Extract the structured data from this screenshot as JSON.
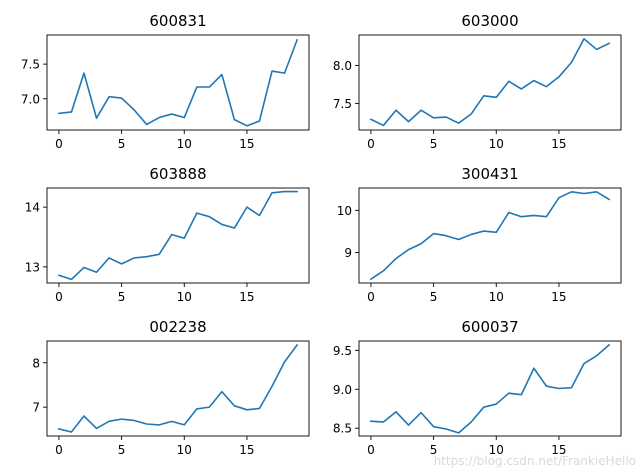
{
  "line_color": "#1f77b4",
  "watermark": "https://blog.csdn.net/FrankieHello",
  "chart_data": [
    {
      "type": "line",
      "title": "600831",
      "x": [
        0,
        1,
        2,
        3,
        4,
        5,
        6,
        7,
        8,
        9,
        10,
        11,
        12,
        13,
        14,
        15,
        16,
        17,
        18,
        19
      ],
      "series": [
        {
          "values": [
            6.79,
            6.81,
            7.37,
            6.72,
            7.03,
            7.01,
            6.84,
            6.63,
            6.73,
            6.78,
            6.73,
            7.17,
            7.17,
            7.35,
            6.7,
            6.61,
            6.68,
            7.4,
            7.37,
            7.85
          ]
        }
      ],
      "xlim": [
        -0.95,
        19.95
      ],
      "ylim": [
        6.55,
        7.92
      ],
      "xticks": [
        0,
        5,
        10,
        15
      ],
      "xtick_labels": [
        "0",
        "5",
        "10",
        "15"
      ],
      "yticks": [
        7.0,
        7.5
      ],
      "ytick_labels": [
        "7.0",
        "7.5"
      ]
    },
    {
      "type": "line",
      "title": "603000",
      "x": [
        0,
        1,
        2,
        3,
        4,
        5,
        6,
        7,
        8,
        9,
        10,
        11,
        12,
        13,
        14,
        15,
        16,
        17,
        18,
        19
      ],
      "series": [
        {
          "values": [
            7.29,
            7.21,
            7.41,
            7.26,
            7.41,
            7.31,
            7.32,
            7.24,
            7.36,
            7.6,
            7.58,
            7.79,
            7.69,
            7.8,
            7.72,
            7.85,
            8.04,
            8.35,
            8.21,
            8.29
          ]
        }
      ],
      "xlim": [
        -0.95,
        19.95
      ],
      "ylim": [
        7.15,
        8.4
      ],
      "xticks": [
        0,
        5,
        10,
        15
      ],
      "xtick_labels": [
        "0",
        "5",
        "10",
        "15"
      ],
      "yticks": [
        7.5,
        8.0
      ],
      "ytick_labels": [
        "7.5",
        "8.0"
      ]
    },
    {
      "type": "line",
      "title": "603888",
      "x": [
        0,
        1,
        2,
        3,
        4,
        5,
        6,
        7,
        8,
        9,
        10,
        11,
        12,
        13,
        14,
        15,
        16,
        17,
        18,
        19
      ],
      "series": [
        {
          "values": [
            12.86,
            12.79,
            12.99,
            12.91,
            13.15,
            13.05,
            13.15,
            13.17,
            13.21,
            13.54,
            13.48,
            13.9,
            13.84,
            13.71,
            13.65,
            14.0,
            13.86,
            14.24,
            14.26,
            14.26
          ]
        }
      ],
      "xlim": [
        -0.95,
        19.95
      ],
      "ylim": [
        12.73,
        14.32
      ],
      "xticks": [
        0,
        5,
        10,
        15
      ],
      "xtick_labels": [
        "0",
        "5",
        "10",
        "15"
      ],
      "yticks": [
        13,
        14
      ],
      "ytick_labels": [
        "13",
        "14"
      ]
    },
    {
      "type": "line",
      "title": "300431",
      "x": [
        0,
        1,
        2,
        3,
        4,
        5,
        6,
        7,
        8,
        9,
        10,
        11,
        12,
        13,
        14,
        15,
        16,
        17,
        18,
        19
      ],
      "series": [
        {
          "values": [
            8.37,
            8.57,
            8.86,
            9.07,
            9.21,
            9.45,
            9.4,
            9.31,
            9.43,
            9.51,
            9.48,
            9.95,
            9.85,
            9.88,
            9.85,
            10.3,
            10.44,
            10.4,
            10.44,
            10.26
          ]
        }
      ],
      "xlim": [
        -0.95,
        19.95
      ],
      "ylim": [
        8.28,
        10.53
      ],
      "xticks": [
        0,
        5,
        10,
        15
      ],
      "xtick_labels": [
        "0",
        "5",
        "10",
        "15"
      ],
      "yticks": [
        9,
        10
      ],
      "ytick_labels": [
        "9",
        "10"
      ]
    },
    {
      "type": "line",
      "title": "002238",
      "x": [
        0,
        1,
        2,
        3,
        4,
        5,
        6,
        7,
        8,
        9,
        10,
        11,
        12,
        13,
        14,
        15,
        16,
        17,
        18,
        19
      ],
      "series": [
        {
          "values": [
            6.51,
            6.44,
            6.8,
            6.52,
            6.68,
            6.73,
            6.7,
            6.62,
            6.6,
            6.68,
            6.6,
            6.96,
            7.0,
            7.35,
            7.03,
            6.94,
            6.97,
            7.47,
            8.02,
            8.4
          ]
        }
      ],
      "xlim": [
        -0.95,
        19.95
      ],
      "ylim": [
        6.35,
        8.49
      ],
      "xticks": [
        0,
        5,
        10,
        15
      ],
      "xtick_labels": [
        "0",
        "5",
        "10",
        "15"
      ],
      "yticks": [
        7,
        8
      ],
      "ytick_labels": [
        "7",
        "8"
      ]
    },
    {
      "type": "line",
      "title": "600037",
      "x": [
        0,
        1,
        2,
        3,
        4,
        5,
        6,
        7,
        8,
        9,
        10,
        11,
        12,
        13,
        14,
        15,
        16,
        17,
        18,
        19
      ],
      "series": [
        {
          "values": [
            8.59,
            8.58,
            8.71,
            8.54,
            8.7,
            8.52,
            8.49,
            8.44,
            8.58,
            8.77,
            8.81,
            8.95,
            8.93,
            9.27,
            9.04,
            9.01,
            9.02,
            9.33,
            9.43,
            9.57
          ]
        }
      ],
      "xlim": [
        -0.95,
        19.95
      ],
      "ylim": [
        8.4,
        9.62
      ],
      "xticks": [
        0,
        5,
        10,
        15
      ],
      "xtick_labels": [
        "0",
        "5",
        "10",
        "15"
      ],
      "yticks": [
        8.5,
        9.0,
        9.5
      ],
      "ytick_labels": [
        "8.5",
        "9.0",
        "9.5"
      ]
    }
  ]
}
